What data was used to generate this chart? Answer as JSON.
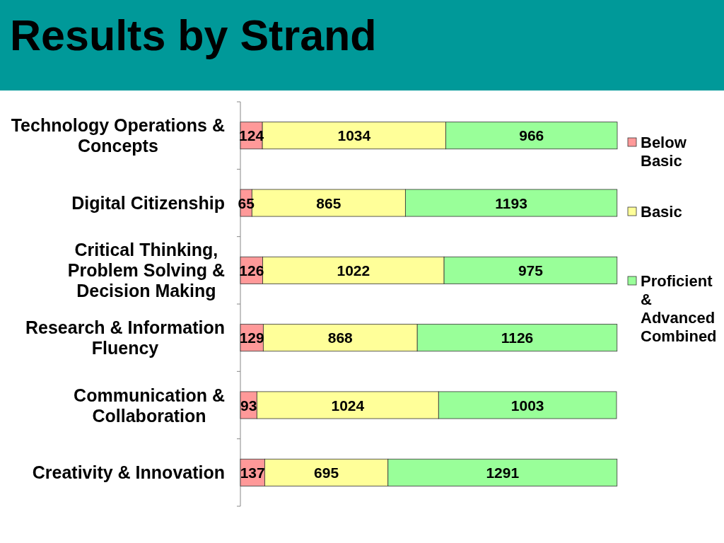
{
  "chart_data": {
    "type": "bar",
    "title": "Results by Strand",
    "orientation": "horizontal",
    "stacked": true,
    "data_labels": true,
    "legend": "right",
    "tick_labels": "y",
    "categories": [
      "Technology Operations & Concepts",
      "Digital Citizenship",
      "Critical Thinking, Problem Solving & Decision Making",
      "Research & Information Fluency",
      "Communication & Collaboration",
      "Creativity & Innovation"
    ],
    "series": [
      {
        "name": "Below Basic",
        "color": "#ff9999",
        "values": [
          124,
          65,
          126,
          129,
          93,
          137
        ]
      },
      {
        "name": "Basic",
        "color": "#ffff99",
        "values": [
          1034,
          865,
          1022,
          868,
          1024,
          695
        ]
      },
      {
        "name": "Proficient & Advanced Combined",
        "color": "#99ff99",
        "values": [
          966,
          1193,
          975,
          1126,
          1003,
          1291
        ]
      }
    ]
  }
}
